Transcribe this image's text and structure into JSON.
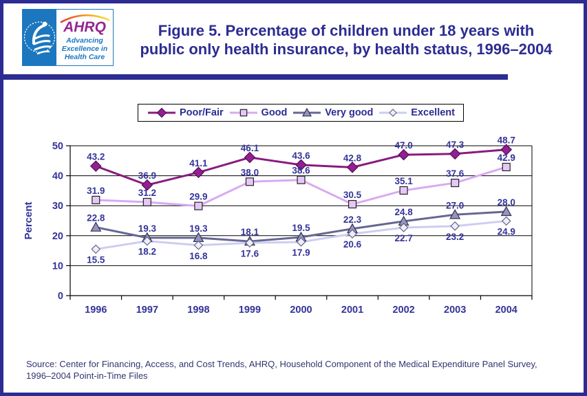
{
  "header": {
    "logo": {
      "hhs_seal_alt": "Department of Health & Human Services USA seal",
      "ahrq_wordmark": "AHRQ",
      "tagline_lines": [
        "Advancing",
        "Excellence in",
        "Health Care"
      ]
    },
    "title_line1": "Figure 5. Percentage of children under 18 years with",
    "title_line2": "public only health insurance, by health status, 1996–2004"
  },
  "colors": {
    "frame_navy": "#2C2C92",
    "label_navy": "#333399",
    "source_navy": "#333370",
    "hhs_blue": "#1C77BE",
    "ahrq_purple": "#92278F",
    "arc_gradient": [
      "#E23E3E",
      "#F7A21B",
      "#F7E04A"
    ],
    "grid_black": "#000000"
  },
  "chart_data": {
    "type": "line",
    "title": "Percentage of children under 18 years with public only health insurance, by health status, 1996–2004",
    "categories": [
      "1996",
      "1997",
      "1998",
      "1999",
      "2000",
      "2001",
      "2002",
      "2003",
      "2004"
    ],
    "xlabel": "",
    "ylabel": "Percent",
    "ylim": [
      0,
      50
    ],
    "yticks": [
      0,
      10,
      20,
      30,
      40,
      50
    ],
    "grid": true,
    "legend_position": "top-center",
    "label_color": "#333399",
    "series": [
      {
        "name": "Poor/Fair",
        "marker": "diamond",
        "color": "#8A1B7F",
        "marker_fill": "#951E94",
        "marker_stroke": "#4D1050",
        "label_position": "above",
        "values": [
          43.2,
          36.9,
          41.1,
          46.1,
          43.6,
          42.8,
          47.0,
          47.3,
          48.7
        ]
      },
      {
        "name": "Good",
        "marker": "square",
        "color": "#D9A9F2",
        "marker_fill": "#E6C8F6",
        "marker_stroke": "#222222",
        "label_position": "above",
        "values": [
          31.9,
          31.2,
          29.9,
          38.0,
          38.6,
          30.5,
          35.1,
          37.6,
          42.9
        ]
      },
      {
        "name": "Very good",
        "marker": "triangle",
        "color": "#666694",
        "marker_fill": "#9595BC",
        "marker_stroke": "#30305A",
        "label_position": "above",
        "values": [
          22.8,
          19.3,
          19.3,
          18.1,
          19.5,
          22.3,
          24.8,
          27.0,
          28.0
        ]
      },
      {
        "name": "Excellent",
        "marker": "diamond-open",
        "color": "#CDCDF2",
        "marker_fill": "#EEEEFB",
        "marker_stroke": "#666688",
        "label_position": "below",
        "values": [
          15.5,
          18.2,
          16.8,
          17.6,
          17.9,
          20.6,
          22.7,
          23.2,
          24.9
        ]
      }
    ]
  },
  "source": {
    "lines": [
      "Source: Center for Financing, Access, and Cost Trends, AHRQ, Household Component of the Medical Expenditure Panel Survey,",
      "1996–2004 Point-in-Time Files"
    ]
  }
}
